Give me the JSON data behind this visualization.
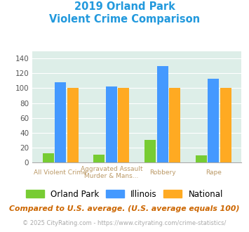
{
  "title_line1": "2019 Orland Park",
  "title_line2": "Violent Crime Comparison",
  "category_top": [
    "",
    "Aggravated Assault",
    "",
    ""
  ],
  "category_bot": [
    "All Violent Crime",
    "Murder & Mans...",
    "Robbery",
    "Rape"
  ],
  "series": {
    "Orland Park": [
      12,
      10,
      30,
      9
    ],
    "Illinois": [
      108,
      102,
      130,
      113
    ],
    "National": [
      100,
      100,
      100,
      100
    ]
  },
  "colors": {
    "Orland Park": "#77cc33",
    "Illinois": "#4499ff",
    "National": "#ffaa22"
  },
  "ylim": [
    0,
    150
  ],
  "yticks": [
    0,
    20,
    40,
    60,
    80,
    100,
    120,
    140
  ],
  "background_color": "#ddeee8",
  "title_color": "#2299dd",
  "xlabel_color": "#bb9966",
  "footer_text": "Compared to U.S. average. (U.S. average equals 100)",
  "footer_color": "#cc6600",
  "credit_text": "© 2025 CityRating.com - https://www.cityrating.com/crime-statistics/",
  "credit_color": "#aaaaaa",
  "credit_link_color": "#4499ff"
}
